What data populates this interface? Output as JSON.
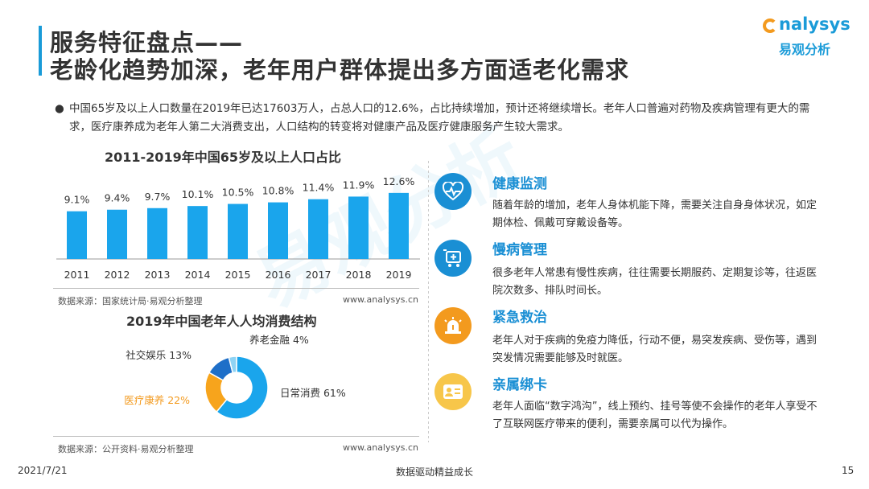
{
  "header": {
    "title_line1": "服务特征盘点——",
    "title_line2": "老龄化趋势加深，老年用户群体提出多方面适老化需求"
  },
  "logo": {
    "en": "nalysys",
    "cn": "易观分析"
  },
  "watermark": "易观分析",
  "summary": {
    "bullet": "●",
    "text": "中国65岁及以上人口数量在2019年已达17603万人，占总人口的12.6%，占比持续增加，预计还将继续增长。老年人口普遍对药物及疾病管理有更大的需求，医疗康养成为老年人第二大消费支出，人口结构的转变将对健康产品及医疗健康服务产生较大需求。"
  },
  "chart1": {
    "source": "数据来源：国家统计局·易观分析整理",
    "url": "www.analysys.cn"
  },
  "chart2": {
    "source": "数据来源：公开资料·易观分析整理",
    "url": "www.analysys.cn"
  },
  "chart_data": [
    {
      "type": "bar",
      "title": "2011-2019年中国65岁及以上人口占比",
      "categories": [
        "2011",
        "2012",
        "2013",
        "2014",
        "2015",
        "2016",
        "2017",
        "2018",
        "2019"
      ],
      "values": [
        9.1,
        9.4,
        9.7,
        10.1,
        10.5,
        10.8,
        11.4,
        11.9,
        12.6
      ],
      "labels": [
        "9.1%",
        "9.4%",
        "9.7%",
        "10.1%",
        "10.5%",
        "10.8%",
        "11.4%",
        "11.9%",
        "12.6%"
      ],
      "unit": "%",
      "color": "#1aa5ec"
    },
    {
      "type": "pie",
      "title": "2019年中国老年人人均消费结构",
      "labels": [
        "日常消费",
        "医疗康养",
        "社交娱乐",
        "养老金融"
      ],
      "values": [
        61,
        22,
        13,
        4
      ],
      "display": [
        "日常消费 61%",
        "医疗康养 22%",
        "社交娱乐 13%",
        "养老金融 4%"
      ],
      "colors": [
        "#1aa5ec",
        "#f7a41c",
        "#1e6fc8",
        "#8fd3f4"
      ],
      "label_colors": [
        "#333333",
        "#f39a1e",
        "#333333",
        "#333333"
      ]
    }
  ],
  "features": [
    {
      "title": "健康监测",
      "desc": "随着年龄的增加，老年人身体机能下降，需要关注自身身体状况，如定期体检、佩戴可穿戴设备等。",
      "icon": "heart-monitor-icon",
      "color": "#1a8fd4"
    },
    {
      "title": "慢病管理",
      "desc": "很多老年人常患有慢性疾病，往往需要长期服药、定期复诊等，往返医院次数多、排队时间长。",
      "icon": "medical-cart-icon",
      "color": "#1a8fd4"
    },
    {
      "title": "紧急救治",
      "desc": "老年人对于疾病的免疫力降低，行动不便，易突发疾病、受伤等，遇到突发情况需要能够及时就医。",
      "icon": "alarm-siren-icon",
      "color": "#f39a1e"
    },
    {
      "title": "亲属绑卡",
      "desc": "老年人面临“数字鸿沟”，线上预约、挂号等使不会操作的老年人享受不了互联网医疗带来的便利，需要亲属可以代为操作。",
      "icon": "id-card-icon",
      "color": "#f39a1e"
    }
  ],
  "footer": {
    "date": "2021/7/21",
    "slogan": "数据驱动精益成长",
    "page": "15"
  }
}
